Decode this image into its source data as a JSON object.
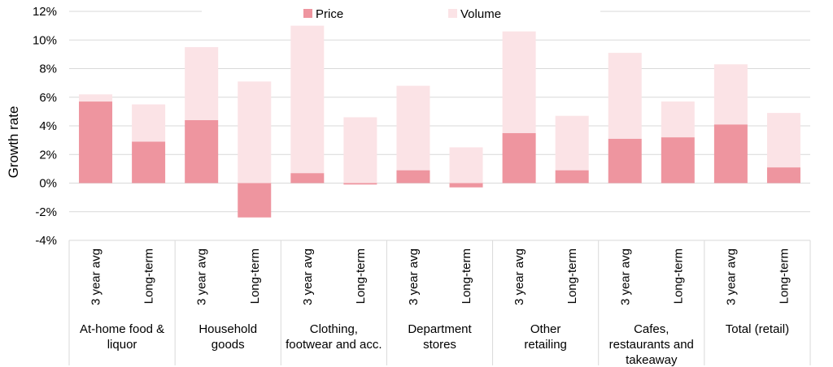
{
  "chart_data": {
    "type": "bar",
    "stacked": true,
    "ylabel": "Growth rate",
    "ylim": [
      -4,
      12
    ],
    "yticks": [
      -4,
      -2,
      0,
      2,
      4,
      6,
      8,
      10,
      12
    ],
    "ytick_labels": [
      "-4%",
      "-2%",
      "0%",
      "2%",
      "4%",
      "6%",
      "8%",
      "10%",
      "12%"
    ],
    "grid": true,
    "legend_position": "top",
    "groups": [
      {
        "label_lines": [
          "At-home food &",
          "liquor"
        ]
      },
      {
        "label_lines": [
          "Household",
          "goods"
        ]
      },
      {
        "label_lines": [
          "Clothing,",
          "footwear and acc."
        ]
      },
      {
        "label_lines": [
          "Department",
          "stores"
        ]
      },
      {
        "label_lines": [
          "Other",
          "retailing"
        ]
      },
      {
        "label_lines": [
          "Cafes,",
          "restaurants and",
          "takeaway"
        ]
      },
      {
        "label_lines": [
          "Total (retail)"
        ]
      }
    ],
    "subcategories": [
      "3 year avg",
      "Long-term"
    ],
    "series": [
      {
        "name": "Price",
        "color": "#ee959f",
        "values": [
          5.7,
          2.9,
          4.4,
          -2.4,
          0.7,
          -0.1,
          0.9,
          -0.3,
          3.5,
          0.9,
          3.1,
          3.2,
          4.1,
          1.1
        ]
      },
      {
        "name": "Volume",
        "color": "#fbe3e6",
        "values": [
          0.5,
          2.6,
          5.1,
          7.1,
          10.3,
          4.6,
          5.9,
          2.5,
          7.1,
          3.8,
          6.0,
          2.5,
          4.2,
          3.8
        ]
      }
    ]
  }
}
